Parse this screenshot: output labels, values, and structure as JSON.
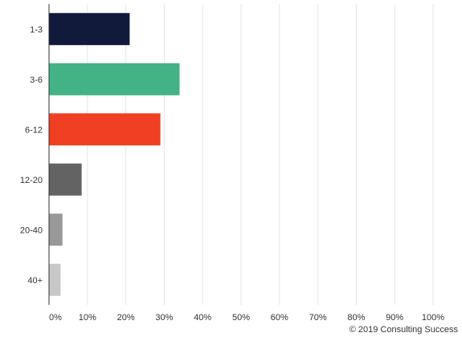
{
  "chart_data": {
    "type": "bar",
    "orientation": "horizontal",
    "categories": [
      "1-3",
      "3-6",
      "6-12",
      "12-20",
      "20-40",
      "40+"
    ],
    "values": [
      21,
      34,
      29,
      8.5,
      3.5,
      3
    ],
    "colors": [
      "#121a3b",
      "#43b385",
      "#f03f22",
      "#636363",
      "#999999",
      "#c8c8c8"
    ],
    "xlim": [
      0,
      100
    ],
    "xticks": [
      0,
      10,
      20,
      30,
      40,
      50,
      60,
      70,
      80,
      90,
      100
    ],
    "tick_suffix": "%",
    "grid": true,
    "gridline_color": "#e6e6e6",
    "axis_color": "#333333",
    "title": "",
    "xlabel": "",
    "ylabel": ""
  },
  "credit": "© 2019 Consulting Success"
}
